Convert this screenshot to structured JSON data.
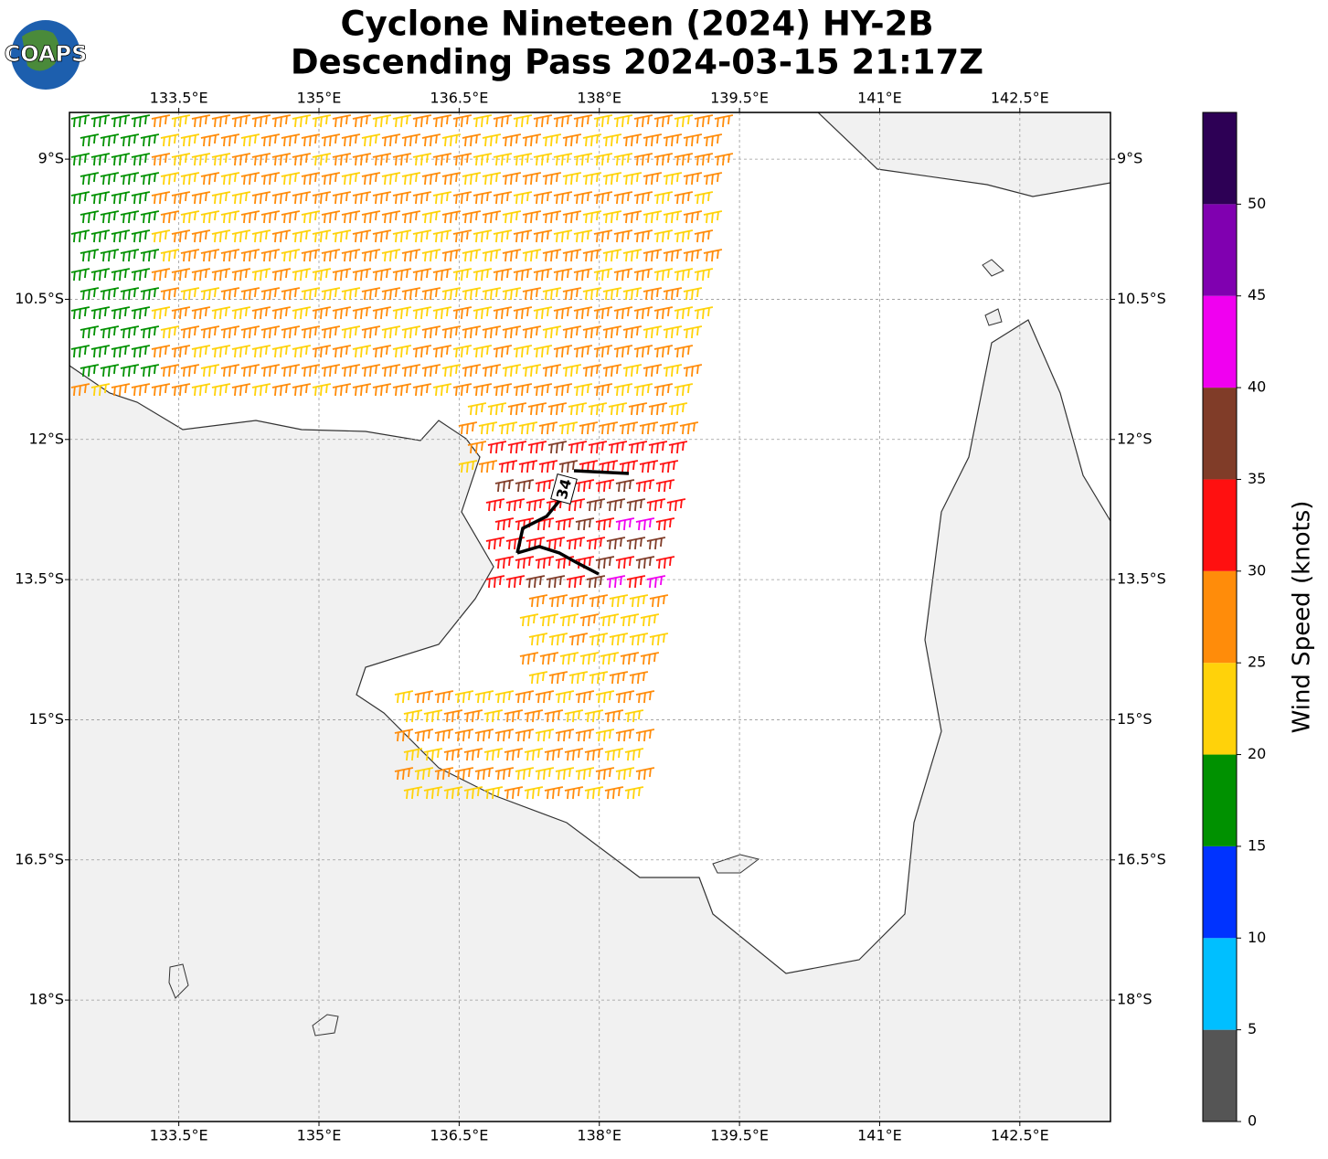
{
  "header": {
    "logo_text": "COAPS",
    "title": "Cyclone Nineteen (2024) HY-2B",
    "subtitle": "Descending Pass 2024-03-15 21:17Z"
  },
  "map": {
    "xlim": [
      132.33,
      143.47
    ],
    "ylim": [
      -19.3,
      -8.5
    ],
    "xticks": [
      {
        "value": 133.5,
        "label": "133.5°E"
      },
      {
        "value": 135,
        "label": "135°E"
      },
      {
        "value": 136.5,
        "label": "136.5°E"
      },
      {
        "value": 138,
        "label": "138°E"
      },
      {
        "value": 139.5,
        "label": "139.5°E"
      },
      {
        "value": 141,
        "label": "141°E"
      },
      {
        "value": 142.5,
        "label": "142.5°E"
      }
    ],
    "yticks": [
      {
        "value": -9,
        "label": "9°S"
      },
      {
        "value": -10.5,
        "label": "10.5°S"
      },
      {
        "value": -12,
        "label": "12°S"
      },
      {
        "value": -13.5,
        "label": "13.5°S"
      },
      {
        "value": -15,
        "label": "15°S"
      },
      {
        "value": -16.5,
        "label": "16.5°S"
      },
      {
        "value": -18,
        "label": "18°S"
      }
    ],
    "grid": true,
    "contour_level": 34
  },
  "colorbar": {
    "label": "Wind Speed (knots)",
    "lim": [
      0,
      55
    ],
    "ticks": [
      0,
      5,
      10,
      15,
      20,
      25,
      30,
      35,
      40,
      45,
      50
    ],
    "colors": [
      "#555555",
      "#00bfff",
      "#0033ff",
      "#009100",
      "#ffd20a",
      "#ff8c0a",
      "#ff1010",
      "#803c28",
      "#f000f0",
      "#8000b0",
      "#2d0055"
    ]
  }
}
